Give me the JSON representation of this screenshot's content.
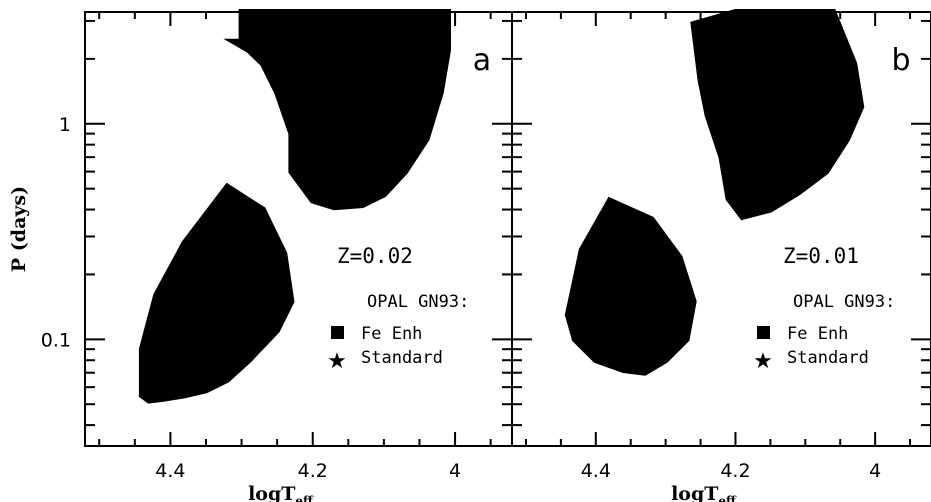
{
  "chart_data": [
    {
      "type": "scatter",
      "panel_label": "a",
      "annotation": "Z=0.02",
      "legend_title": "OPAL GN93:",
      "legend_entries": [
        "Fe Enh",
        "Standard"
      ],
      "xlabel": "logT",
      "xlabel_sub": "eff",
      "ylabel": "P (days)",
      "xlim": [
        4.52,
        3.92
      ],
      "ylim": [
        0.032,
        3.3
      ],
      "yscale": "log",
      "x_ticks": [
        "4.4",
        "4.2",
        "4"
      ],
      "y_ticks": [
        "1",
        "0.1"
      ],
      "series": [
        {
          "name": "Fe Enh",
          "regions": [
            {
              "label": "upper region (log P vs logTeff outline)",
              "outline_x": [
                4.3,
                4.3,
                4.01,
                4.01,
                4.02,
                4.04,
                4.07,
                4.1,
                4.13,
                4.17,
                4.2,
                4.23,
                4.23,
                4.25,
                4.27,
                4.29,
                4.31,
                4.3
              ],
              "outline_y": [
                2.4,
                3.3,
                3.3,
                2.2,
                1.4,
                0.85,
                0.6,
                0.47,
                0.42,
                0.41,
                0.44,
                0.6,
                0.9,
                1.4,
                1.9,
                2.2,
                2.4,
                2.4
              ]
            },
            {
              "label": "lower region",
              "outline_x": [
                4.44,
                4.44,
                4.42,
                4.38,
                4.32,
                4.27,
                4.24,
                4.23,
                4.25,
                4.29,
                4.32,
                4.35,
                4.38,
                4.41,
                4.43,
                4.44
              ],
              "outline_y": [
                0.055,
                0.09,
                0.16,
                0.28,
                0.51,
                0.4,
                0.25,
                0.15,
                0.11,
                0.08,
                0.065,
                0.058,
                0.055,
                0.053,
                0.052,
                0.055
              ]
            }
          ]
        },
        {
          "name": "Standard",
          "regions": []
        }
      ]
    },
    {
      "type": "scatter",
      "panel_label": "b",
      "annotation": "Z=0.01",
      "legend_title": "OPAL GN93:",
      "legend_entries": [
        "Fe Enh",
        "Standard"
      ],
      "xlabel": "logT",
      "xlabel_sub": "eff",
      "ylabel": "",
      "xlim": [
        4.52,
        3.92
      ],
      "ylim": [
        0.032,
        3.3
      ],
      "yscale": "log",
      "x_ticks": [
        "4.4",
        "4.2",
        "4"
      ],
      "y_ticks": [],
      "series": [
        {
          "name": "Fe Enh",
          "regions": [
            {
              "label": "upper region (log P vs logTeff outline)",
              "outline_x": [
                4.25,
                4.26,
                4.2,
                4.06,
                4.03,
                4.02,
                4.04,
                4.07,
                4.11,
                4.15,
                4.19,
                4.21,
                4.22,
                4.24,
                4.25
              ],
              "outline_y": [
                1.6,
                2.9,
                3.3,
                3.3,
                1.9,
                1.2,
                0.85,
                0.6,
                0.48,
                0.4,
                0.37,
                0.45,
                0.7,
                1.1,
                1.6
              ]
            },
            {
              "label": "lower region",
              "outline_x": [
                4.44,
                4.42,
                4.38,
                4.32,
                4.28,
                4.26,
                4.27,
                4.3,
                4.33,
                4.36,
                4.4,
                4.43,
                4.44
              ],
              "outline_y": [
                0.13,
                0.26,
                0.44,
                0.36,
                0.24,
                0.15,
                0.1,
                0.08,
                0.07,
                0.072,
                0.08,
                0.1,
                0.13
              ]
            }
          ]
        },
        {
          "name": "Standard",
          "regions": []
        }
      ]
    }
  ]
}
